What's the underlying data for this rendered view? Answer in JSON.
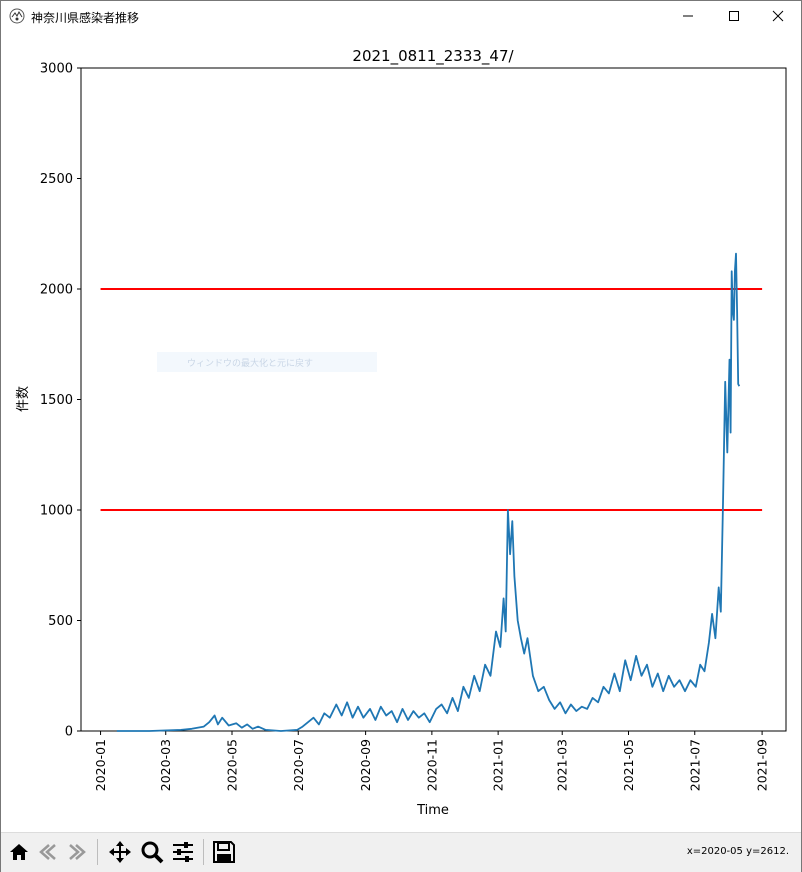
{
  "window": {
    "title": "神奈川県感染者推移",
    "icon": "app-logo-icon"
  },
  "window_controls": [
    "minimize-icon",
    "maximize-icon",
    "close-icon"
  ],
  "ghost_hint": "ウィンドウの最大化と元に戻す",
  "toolbar": {
    "buttons": [
      "home-icon",
      "back-icon",
      "forward-icon",
      "pan-icon",
      "zoom-icon",
      "configure-subplots-icon",
      "save-icon"
    ],
    "coords": "x=2020-05 y=2612."
  },
  "chart_data": {
    "type": "line",
    "title": "2021_0811_2333_47/",
    "xlabel": "Time",
    "ylabel": "件数",
    "ylim": [
      0,
      3000
    ],
    "yticks": [
      0,
      500,
      1000,
      1500,
      2000,
      2500,
      3000
    ],
    "xlim": [
      "2019-12-14",
      "2021-09-23"
    ],
    "xticks": [
      "2020-01",
      "2020-03",
      "2020-05",
      "2020-07",
      "2020-09",
      "2020-11",
      "2021-01",
      "2021-03",
      "2021-05",
      "2021-07",
      "2021-09"
    ],
    "grid": false,
    "reference_lines": [
      {
        "y": 2000,
        "x_start": "2020-01-01",
        "x_end": "2021-09-01",
        "color": "#ff0000"
      },
      {
        "y": 1000,
        "x_start": "2020-01-01",
        "x_end": "2021-09-01",
        "color": "#ff0000"
      }
    ],
    "series": [
      {
        "color": "#1f77b4",
        "x": [
          "2020-01-16",
          "2020-02-15",
          "2020-03-15",
          "2020-03-25",
          "2020-04-05",
          "2020-04-10",
          "2020-04-15",
          "2020-04-18",
          "2020-04-22",
          "2020-04-28",
          "2020-05-05",
          "2020-05-10",
          "2020-05-15",
          "2020-05-20",
          "2020-05-25",
          "2020-06-01",
          "2020-06-15",
          "2020-06-30",
          "2020-07-05",
          "2020-07-10",
          "2020-07-15",
          "2020-07-20",
          "2020-07-25",
          "2020-07-30",
          "2020-08-05",
          "2020-08-10",
          "2020-08-15",
          "2020-08-20",
          "2020-08-25",
          "2020-08-30",
          "2020-09-05",
          "2020-09-10",
          "2020-09-15",
          "2020-09-20",
          "2020-09-25",
          "2020-09-30",
          "2020-10-05",
          "2020-10-10",
          "2020-10-15",
          "2020-10-20",
          "2020-10-25",
          "2020-10-30",
          "2020-11-05",
          "2020-11-10",
          "2020-11-15",
          "2020-11-20",
          "2020-11-25",
          "2020-11-30",
          "2020-12-05",
          "2020-12-10",
          "2020-12-15",
          "2020-12-20",
          "2020-12-25",
          "2020-12-30",
          "2021-01-03",
          "2021-01-06",
          "2021-01-08",
          "2021-01-10",
          "2021-01-12",
          "2021-01-14",
          "2021-01-16",
          "2021-01-19",
          "2021-01-22",
          "2021-01-25",
          "2021-01-28",
          "2021-02-02",
          "2021-02-07",
          "2021-02-12",
          "2021-02-17",
          "2021-02-22",
          "2021-02-27",
          "2021-03-04",
          "2021-03-09",
          "2021-03-14",
          "2021-03-19",
          "2021-03-24",
          "2021-03-29",
          "2021-04-03",
          "2021-04-08",
          "2021-04-13",
          "2021-04-18",
          "2021-04-23",
          "2021-04-28",
          "2021-05-03",
          "2021-05-08",
          "2021-05-13",
          "2021-05-18",
          "2021-05-23",
          "2021-05-28",
          "2021-06-02",
          "2021-06-07",
          "2021-06-12",
          "2021-06-17",
          "2021-06-22",
          "2021-06-27",
          "2021-07-02",
          "2021-07-06",
          "2021-07-10",
          "2021-07-14",
          "2021-07-17",
          "2021-07-20",
          "2021-07-23",
          "2021-07-25",
          "2021-07-27",
          "2021-07-29",
          "2021-07-31",
          "2021-08-02",
          "2021-08-03",
          "2021-08-04",
          "2021-08-05",
          "2021-08-06",
          "2021-08-07",
          "2021-08-08",
          "2021-08-09",
          "2021-08-10",
          "2021-08-11"
        ],
        "values": [
          0,
          0,
          5,
          10,
          20,
          40,
          70,
          30,
          60,
          25,
          35,
          15,
          30,
          10,
          20,
          5,
          0,
          5,
          20,
          40,
          60,
          30,
          80,
          60,
          120,
          70,
          130,
          60,
          110,
          60,
          100,
          50,
          110,
          70,
          90,
          40,
          100,
          50,
          90,
          60,
          80,
          40,
          100,
          120,
          80,
          150,
          90,
          200,
          150,
          250,
          180,
          300,
          250,
          450,
          380,
          600,
          450,
          1000,
          800,
          950,
          700,
          500,
          420,
          350,
          420,
          250,
          180,
          200,
          140,
          100,
          130,
          80,
          120,
          90,
          110,
          100,
          150,
          130,
          200,
          170,
          260,
          180,
          320,
          230,
          340,
          250,
          300,
          200,
          260,
          180,
          250,
          200,
          230,
          180,
          230,
          200,
          300,
          270,
          400,
          530,
          420,
          650,
          540,
          1030,
          1580,
          1260,
          1680,
          1350,
          2080,
          1900,
          1860,
          2080,
          2160,
          1900,
          1570,
          1560
        ]
      }
    ]
  }
}
